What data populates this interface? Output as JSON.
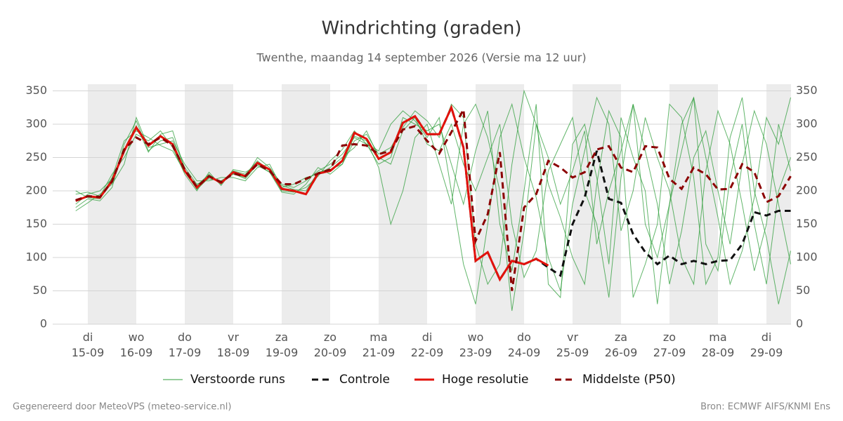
{
  "chart_data": {
    "type": "line",
    "title": "Windrichting (graden)",
    "subtitle": "Twenthe, maandag 14 september 2026 (Versie ma 12 uur)",
    "footer_left": "Gegenereerd door MeteoVPS (meteo-service.nl)",
    "footer_right": "Bron: ECMWF AIFS/KNMI Ens",
    "categories": [
      null,
      "di\n15-09",
      null,
      null,
      null,
      "wo\n16-09",
      null,
      null,
      null,
      "do\n17-09",
      null,
      null,
      null,
      "vr\n18-09",
      null,
      null,
      null,
      "za\n19-09",
      null,
      null,
      null,
      "zo\n20-09",
      null,
      null,
      null,
      "ma\n21-09",
      null,
      null,
      null,
      "di\n22-09",
      null,
      null,
      null,
      "wo\n23-09",
      null,
      null,
      null,
      "do\n24-09",
      null,
      null,
      null,
      "vr\n25-09",
      null,
      null,
      null,
      "za\n26-09",
      null,
      null,
      null,
      "zo\n27-09",
      null,
      null,
      null,
      "ma\n28-09",
      null,
      null,
      null,
      "di\n29-09",
      null,
      null
    ],
    "ylim": [
      0,
      360
    ],
    "yticks": [
      0,
      50,
      100,
      150,
      200,
      250,
      300,
      350
    ],
    "grid": true,
    "ensemble": {
      "name": "Verstoorde runs",
      "color": "#2e9e3a",
      "runs": [
        [
          175,
          188,
          185,
          205,
          270,
          305,
          260,
          275,
          280,
          235,
          210,
          218,
          215,
          225,
          220,
          250,
          235,
          210,
          205,
          215,
          230,
          240,
          255,
          280,
          270,
          240,
          250,
          310,
          300,
          290,
          300,
          240,
          180,
          260,
          320,
          150,
          80,
          200,
          330,
          60,
          40,
          270,
          300,
          220,
          90,
          310,
          250,
          200,
          30,
          180,
          260,
          340,
          120,
          80,
          220,
          300,
          150,
          60,
          200,
          250
        ],
        [
          195,
          198,
          192,
          225,
          250,
          285,
          275,
          290,
          265,
          225,
          200,
          228,
          208,
          232,
          228,
          238,
          228,
          198,
          195,
          210,
          235,
          225,
          240,
          275,
          285,
          255,
          265,
          295,
          320,
          305,
          280,
          330,
          310,
          120,
          60,
          90,
          240,
          350,
          300,
          210,
          160,
          100,
          60,
          210,
          320,
          280,
          40,
          90,
          150,
          330,
          310,
          220,
          60,
          100,
          280,
          340,
          200,
          130,
          30,
          110
        ],
        [
          170,
          182,
          195,
          210,
          240,
          310,
          265,
          270,
          275,
          240,
          215,
          215,
          220,
          220,
          215,
          235,
          240,
          205,
          210,
          220,
          225,
          235,
          250,
          265,
          290,
          250,
          240,
          290,
          310,
          270,
          260,
          300,
          240,
          200,
          250,
          300,
          150,
          70,
          110,
          230,
          270,
          310,
          200,
          150,
          40,
          220,
          330,
          260,
          180,
          60,
          140,
          250,
          290,
          200,
          120,
          240,
          320,
          270,
          180,
          90
        ],
        [
          200,
          190,
          188,
          220,
          275,
          290,
          280,
          268,
          260,
          228,
          208,
          225,
          210,
          230,
          225,
          245,
          230,
          200,
          198,
          205,
          222,
          245,
          262,
          290,
          270,
          260,
          300,
          320,
          305,
          280,
          310,
          200,
          90,
          30,
          150,
          280,
          330,
          250,
          190,
          100,
          50,
          180,
          260,
          340,
          300,
          140,
          200,
          310,
          250,
          200,
          100,
          60,
          230,
          320,
          270,
          180,
          80,
          150,
          300,
          230
        ],
        [
          180,
          195,
          200,
          218,
          262,
          298,
          258,
          285,
          290,
          232,
          202,
          220,
          215,
          226,
          218,
          240,
          228,
          208,
          202,
          200,
          228,
          232,
          240,
          282,
          275,
          235,
          150,
          200,
          280,
          300,
          240,
          180,
          300,
          330,
          280,
          200,
          20,
          140,
          300,
          250,
          180,
          230,
          290,
          120,
          200,
          260,
          330,
          150,
          100,
          180,
          300,
          340,
          250,
          160,
          60,
          110,
          190,
          310,
          270,
          340
        ]
      ]
    },
    "series": [
      {
        "name": "Controle",
        "color": "#111111",
        "dash": true,
        "values": [
          185,
          192,
          190,
          215,
          260,
          295,
          268,
          282,
          270,
          230,
          205,
          222,
          212,
          228,
          222,
          242,
          232,
          203,
          200,
          195,
          226,
          230,
          245,
          287,
          278,
          248,
          258,
          302,
          312,
          285,
          285,
          325,
          265,
          95,
          108,
          67,
          95,
          90,
          98,
          85,
          73,
          150,
          190,
          260,
          188,
          182,
          135,
          108,
          90,
          103,
          90,
          95,
          90,
          95,
          96,
          120,
          168,
          163,
          170,
          170
        ]
      },
      {
        "name": "Hoge resolutie",
        "color": "#e3120b",
        "dash": false,
        "values": [
          185,
          192,
          190,
          215,
          260,
          295,
          268,
          282,
          270,
          230,
          205,
          222,
          212,
          228,
          222,
          242,
          232,
          203,
          200,
          195,
          226,
          230,
          245,
          287,
          278,
          248,
          258,
          302,
          312,
          285,
          285,
          325,
          265,
          95,
          108,
          67,
          95,
          90,
          98,
          88,
          null,
          null,
          null,
          null,
          null,
          null,
          null,
          null,
          null,
          null,
          null,
          null,
          null,
          null,
          null,
          null,
          null,
          null,
          null,
          null
        ]
      },
      {
        "name": "Middelste (P50)",
        "color": "#8b0000",
        "dash": true,
        "values": [
          186,
          192,
          191,
          214,
          262,
          280,
          270,
          280,
          268,
          232,
          206,
          222,
          213,
          226,
          222,
          240,
          230,
          210,
          210,
          218,
          226,
          232,
          268,
          270,
          268,
          255,
          260,
          292,
          297,
          275,
          256,
          288,
          322,
          125,
          165,
          258,
          50,
          175,
          195,
          245,
          235,
          220,
          228,
          262,
          267,
          235,
          228,
          267,
          265,
          218,
          203,
          235,
          225,
          202,
          203,
          240,
          228,
          183,
          192,
          222
        ]
      }
    ]
  }
}
